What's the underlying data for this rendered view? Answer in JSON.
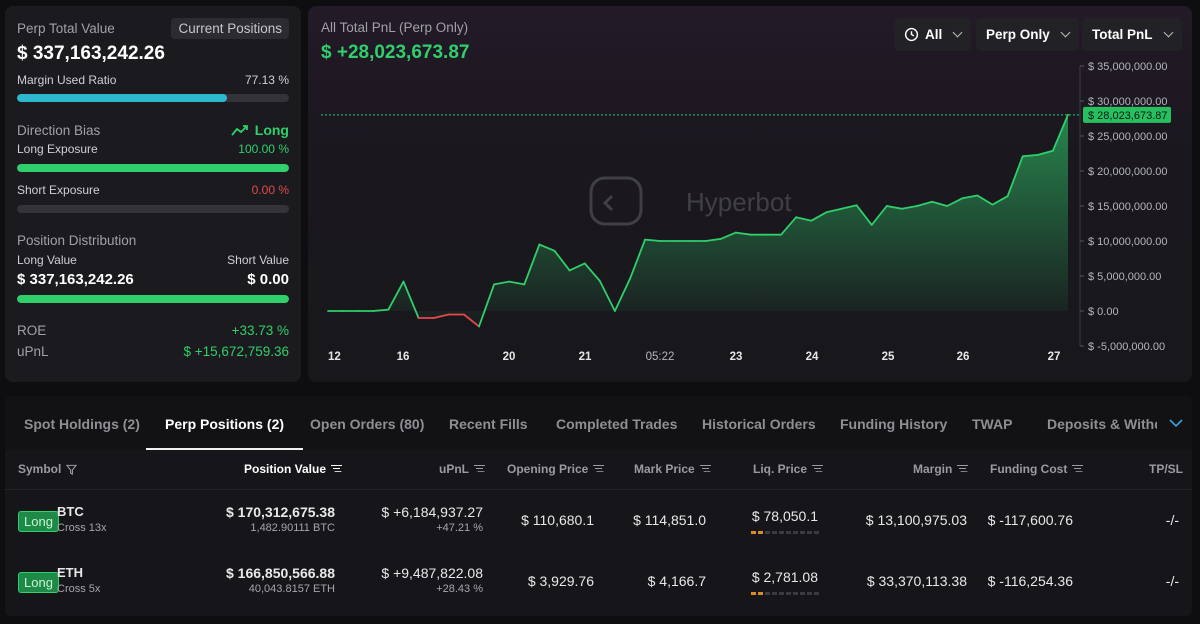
{
  "stats": {
    "perp_total_value_label": "Perp Total Value",
    "current_positions_label": "Current Positions",
    "perp_total_value": "$ 337,163,242.26",
    "margin_used_ratio_label": "Margin Used Ratio",
    "margin_used_ratio": "77.13 %",
    "margin_used_ratio_pct": 77.13,
    "direction_bias_label": "Direction Bias",
    "direction_bias": "Long",
    "long_exposure_label": "Long Exposure",
    "long_exposure": "100.00 %",
    "long_exposure_pct": 100,
    "short_exposure_label": "Short Exposure",
    "short_exposure": "0.00 %",
    "short_exposure_pct": 0,
    "position_distribution_label": "Position Distribution",
    "long_value_label": "Long Value",
    "short_value_label": "Short Value",
    "long_value": "$ 337,163,242.26",
    "short_value": "$ 0.00",
    "roe_label": "ROE",
    "roe": "+33.73 %",
    "upnl_label": "uPnL",
    "upnl": "$ +15,672,759.36"
  },
  "pnl": {
    "title": "All Total PnL (Perp Only)",
    "value": "$ +28,023,673.87",
    "current_marker": "$ 28,023,673.87",
    "watermark": "Hyperbot",
    "filters": {
      "range": "All",
      "scope": "Perp Only",
      "metric": "Total PnL"
    }
  },
  "chart_data": {
    "type": "area",
    "x_ticks": [
      "12",
      "16",
      "20",
      "21",
      "05:22",
      "23",
      "24",
      "25",
      "26",
      "27"
    ],
    "y_ticks": [
      "$ 35,000,000.00",
      "$ 30,000,000.00",
      "$ 25,000,000.00",
      "$ 20,000,000.00",
      "$ 15,000,000.00",
      "$ 10,000,000.00",
      "$ 5,000,000.00",
      "$ 0.00",
      "$ -5,000,000.00"
    ],
    "ylim": [
      -5000000,
      35000000
    ],
    "current_value": 28023673.87,
    "y": [
      0,
      0,
      0,
      0,
      200000,
      4200000,
      -1000000,
      -1000000,
      -500000,
      -500000,
      -2200000,
      3800000,
      4200000,
      3800000,
      9500000,
      8600000,
      5800000,
      6800000,
      4300000,
      0,
      4600000,
      10200000,
      10000000,
      10000000,
      10000000,
      10000000,
      10300000,
      11200000,
      10900000,
      10900000,
      10900000,
      13400000,
      12900000,
      14100000,
      14600000,
      15100000,
      12300000,
      15000000,
      14600000,
      15000000,
      15600000,
      15000000,
      16100000,
      16500000,
      15200000,
      16400000,
      22100000,
      22300000,
      22900000,
      28023673.87
    ],
    "colors": {
      "positive": "#2fcf6b",
      "negative": "#e5484d"
    }
  },
  "bottom": {
    "tabs": [
      "Spot Holdings (2)",
      "Perp Positions (2)",
      "Open Orders (80)",
      "Recent Fills",
      "Completed Trades",
      "Historical Orders",
      "Funding History",
      "TWAP",
      "Deposits & Withdra"
    ],
    "headers": {
      "symbol": "Symbol",
      "position_value": "Position Value",
      "upnl": "uPnL",
      "opening_price": "Opening Price",
      "mark_price": "Mark Price",
      "liq_price": "Liq. Price",
      "margin": "Margin",
      "funding_cost": "Funding Cost",
      "tpsl": "TP/SL"
    },
    "rows": [
      {
        "side": "Long",
        "symbol": "BTC",
        "mode": "Cross 13x",
        "position_value": "$ 170,312,675.38",
        "position_size": "1,482.90111 BTC",
        "upnl": "$ +6,184,937.27",
        "upnl_pct": "+47.21 %",
        "opening_price": "$ 110,680.1",
        "mark_price": "$ 114,851.0",
        "liq_price": "$ 78,050.1",
        "margin": "$ 13,100,975.03",
        "funding_cost": "$ -117,600.76",
        "tpsl": "-/-"
      },
      {
        "side": "Long",
        "symbol": "ETH",
        "mode": "Cross 5x",
        "position_value": "$ 166,850,566.88",
        "position_size": "40,043.8157 ETH",
        "upnl": "$ +9,487,822.08",
        "upnl_pct": "+28.43 %",
        "opening_price": "$ 3,929.76",
        "mark_price": "$ 4,166.7",
        "liq_price": "$ 2,781.08",
        "margin": "$ 33,370,113.38",
        "funding_cost": "$ -116,254.36",
        "tpsl": "-/-"
      }
    ]
  }
}
